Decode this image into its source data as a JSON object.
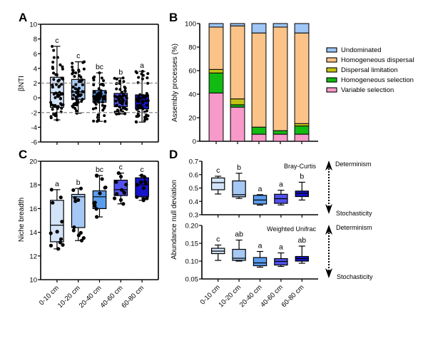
{
  "categories": [
    "0-10 cm",
    "10-20 cm",
    "20-40 cm",
    "40-60 cm",
    "60-80 cm"
  ],
  "box_colors": [
    "#d3e3f8",
    "#a6c8f4",
    "#5a9ded",
    "#5252ec",
    "#1414c8"
  ],
  "chart_data": [
    {
      "panel": "A",
      "type": "box",
      "ylabel": "βNTI",
      "xlabel": "",
      "ylim": [
        -6,
        10
      ],
      "yticks": [
        -6,
        -4,
        -2,
        0,
        2,
        4,
        6,
        8,
        10
      ],
      "reference_lines": [
        2,
        -2
      ],
      "categories": [
        "0-10 cm",
        "10-20 cm",
        "20-40 cm",
        "40-60 cm",
        "60-80 cm"
      ],
      "boxes": [
        {
          "min": -3.0,
          "q1": -1.3,
          "median": 0.7,
          "q3": 2.8,
          "max": 7.0,
          "sig": "c"
        },
        {
          "min": -2.1,
          "q1": -0.2,
          "median": 0.8,
          "q3": 2.5,
          "max": 4.9,
          "sig": "c"
        },
        {
          "min": -3.2,
          "q1": -0.6,
          "median": 0.2,
          "q3": 1.0,
          "max": 3.4,
          "sig": "bc"
        },
        {
          "min": -2.2,
          "q1": -1.2,
          "median": -0.4,
          "q3": 0.6,
          "max": 2.7,
          "sig": "b"
        },
        {
          "min": -3.3,
          "q1": -1.5,
          "median": -0.5,
          "q3": 0.4,
          "max": 3.6,
          "sig": "a"
        }
      ]
    },
    {
      "panel": "B",
      "type": "bar",
      "stacked": true,
      "ylabel": "Assembly processes (%)",
      "ylim": [
        0,
        100
      ],
      "yticks": [
        0,
        20,
        40,
        60,
        80,
        100
      ],
      "categories": [
        "0-10 cm",
        "10-20 cm",
        "20-40 cm",
        "40-60 cm",
        "60-80 cm"
      ],
      "legend_position": "right",
      "series": [
        {
          "name": "Variable selection",
          "color": "#f799c9",
          "values": [
            41,
            29,
            6,
            6,
            6
          ]
        },
        {
          "name": "Homogeneous selection",
          "color": "#11bb11",
          "values": [
            17,
            2,
            6,
            3,
            7
          ]
        },
        {
          "name": "Dispersal limitation",
          "color": "#c2c214",
          "values": [
            3,
            5,
            0,
            0,
            2
          ]
        },
        {
          "name": "Homogeneous dispersal",
          "color": "#fcc388",
          "values": [
            36,
            62,
            80,
            88,
            77
          ]
        },
        {
          "name": "Undominated",
          "color": "#9ec6f6",
          "values": [
            3,
            2,
            8,
            3,
            8
          ]
        }
      ],
      "legend_order": [
        "Undominated",
        "Homogeneous dispersal",
        "Dispersal limitation",
        "Homogeneous selection",
        "Variable selection"
      ]
    },
    {
      "panel": "C",
      "type": "box",
      "ylabel": "Niche breadth",
      "ylim": [
        10,
        20
      ],
      "yticks": [
        10,
        12,
        14,
        16,
        18,
        20
      ],
      "categories": [
        "0-10 cm",
        "10-20 cm",
        "20-40 cm",
        "40-60 cm",
        "60-80 cm"
      ],
      "boxes": [
        {
          "min": 12.6,
          "q1": 13.2,
          "median": 14.6,
          "q3": 16.7,
          "max": 17.6,
          "sig": "a"
        },
        {
          "min": 13.3,
          "q1": 14.4,
          "median": 17.0,
          "q3": 17.2,
          "max": 17.7,
          "sig": "b"
        },
        {
          "min": 15.3,
          "q1": 16.0,
          "median": 17.0,
          "q3": 17.5,
          "max": 18.8,
          "sig": "bc"
        },
        {
          "min": 16.4,
          "q1": 17.1,
          "median": 17.6,
          "q3": 18.4,
          "max": 19.0,
          "sig": "c"
        },
        {
          "min": 16.7,
          "q1": 17.0,
          "median": 18.0,
          "q3": 18.6,
          "max": 18.8,
          "sig": "c"
        }
      ]
    },
    {
      "panel": "D",
      "subpanel": "Bray-Curtis",
      "type": "box",
      "ylabel": "Abundance null deviation",
      "ylim": [
        0.3,
        0.7
      ],
      "yticks": [
        "0.3",
        "0.4",
        "0.5",
        "0.6",
        "0.7"
      ],
      "categories": [
        "0-10 cm",
        "10-20 cm",
        "20-40 cm",
        "40-60 cm",
        "60-80 cm"
      ],
      "boxes": [
        {
          "min": 0.455,
          "q1": 0.487,
          "median": 0.54,
          "q3": 0.575,
          "max": 0.588,
          "sig": "c"
        },
        {
          "min": 0.422,
          "q1": 0.434,
          "median": 0.45,
          "q3": 0.553,
          "max": 0.61,
          "sig": "b"
        },
        {
          "min": 0.372,
          "q1": 0.38,
          "median": 0.41,
          "q3": 0.445,
          "max": 0.45,
          "sig": "a"
        },
        {
          "min": 0.373,
          "q1": 0.385,
          "median": 0.42,
          "q3": 0.453,
          "max": 0.483,
          "sig": "a"
        },
        {
          "min": 0.41,
          "q1": 0.436,
          "median": 0.46,
          "q3": 0.477,
          "max": 0.543,
          "sig": "b"
        }
      ]
    },
    {
      "panel": "D",
      "subpanel": "Weighted Unifrac",
      "type": "box",
      "ylim": [
        0.05,
        0.2
      ],
      "yticks": [
        "0.05",
        "0.10",
        "0.15",
        "0.20"
      ],
      "categories": [
        "0-10 cm",
        "10-20 cm",
        "20-40 cm",
        "40-60 cm",
        "60-80 cm"
      ],
      "boxes": [
        {
          "min": 0.102,
          "q1": 0.121,
          "median": 0.128,
          "q3": 0.136,
          "max": 0.145,
          "sig": "c"
        },
        {
          "min": 0.1,
          "q1": 0.102,
          "median": 0.108,
          "q3": 0.133,
          "max": 0.159,
          "sig": "ab"
        },
        {
          "min": 0.083,
          "q1": 0.087,
          "median": 0.095,
          "q3": 0.11,
          "max": 0.127,
          "sig": "a"
        },
        {
          "min": 0.085,
          "q1": 0.089,
          "median": 0.099,
          "q3": 0.107,
          "max": 0.123,
          "sig": "a"
        },
        {
          "min": 0.094,
          "q1": 0.1,
          "median": 0.107,
          "q3": 0.113,
          "max": 0.142,
          "sig": "ab"
        }
      ]
    }
  ],
  "labels": {
    "panel_a": "A",
    "panel_b": "B",
    "panel_c": "C",
    "panel_d": "D",
    "a_ylabel": "βNTI",
    "b_ylabel": "Assembly processes (%)",
    "c_ylabel": "Niche breadth",
    "d_ylabel": "Abundance null deviation",
    "d_top_title": "Bray-Curtis",
    "d_bottom_title": "Weighted Unifrac",
    "determinism": "Determinism",
    "stochasticity": "Stochasticity"
  }
}
